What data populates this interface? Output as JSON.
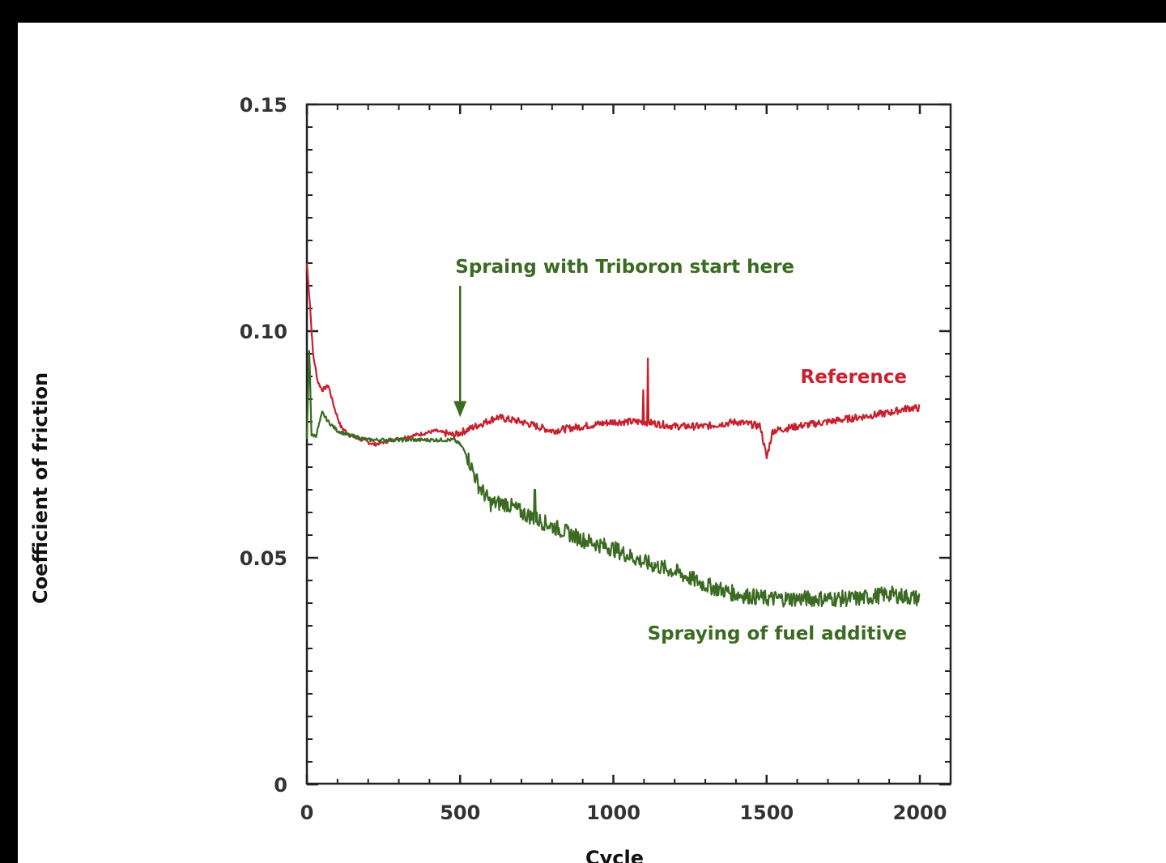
{
  "chart_data": {
    "type": "line",
    "title": "",
    "xlabel": "Cycle",
    "ylabel": "Coefficient of friction",
    "xlim": [
      0,
      2000
    ],
    "ylim": [
      0,
      0.15
    ],
    "x_ticks": [
      0,
      500,
      1000,
      1500,
      2000
    ],
    "y_ticks": [
      0,
      0.05,
      0.1,
      0.15
    ],
    "x_tick_labels": [
      "0",
      "500",
      "1000",
      "1500",
      "2000"
    ],
    "y_tick_labels": [
      "0",
      "0.05",
      "0.10",
      "0.15"
    ],
    "grid": false,
    "series": [
      {
        "name": "Reference",
        "color": "#c8202e",
        "x": [
          0,
          10,
          20,
          35,
          50,
          70,
          90,
          110,
          140,
          180,
          220,
          280,
          350,
          420,
          480,
          550,
          620,
          700,
          800,
          900,
          1000,
          1100,
          1200,
          1300,
          1400,
          1480,
          1500,
          1520,
          1600,
          1700,
          1800,
          1900,
          1960,
          2000
        ],
        "values": [
          0.115,
          0.106,
          0.095,
          0.089,
          0.087,
          0.088,
          0.083,
          0.079,
          0.077,
          0.076,
          0.075,
          0.076,
          0.077,
          0.078,
          0.077,
          0.079,
          0.081,
          0.08,
          0.078,
          0.079,
          0.08,
          0.08,
          0.079,
          0.079,
          0.08,
          0.079,
          0.072,
          0.078,
          0.079,
          0.08,
          0.081,
          0.082,
          0.083,
          0.083
        ]
      },
      {
        "name": "Spraying of fuel additive",
        "color": "#3b6b22",
        "x": [
          0,
          8,
          15,
          30,
          50,
          70,
          100,
          140,
          200,
          300,
          400,
          480,
          500,
          520,
          560,
          600,
          650,
          700,
          800,
          900,
          1000,
          1100,
          1200,
          1300,
          1400,
          1500,
          1600,
          1700,
          1800,
          1900,
          2000
        ],
        "values": [
          0.076,
          0.097,
          0.077,
          0.077,
          0.082,
          0.08,
          0.078,
          0.077,
          0.076,
          0.076,
          0.076,
          0.076,
          0.075,
          0.073,
          0.066,
          0.062,
          0.062,
          0.06,
          0.057,
          0.054,
          0.052,
          0.049,
          0.047,
          0.044,
          0.042,
          0.041,
          0.041,
          0.041,
          0.041,
          0.042,
          0.041
        ]
      }
    ],
    "annotations": [
      {
        "text": "Spraing with Triboron start here",
        "x": 500,
        "arrow_from_y": 0.11,
        "arrow_to_y": 0.081,
        "color": "#3b6b22"
      },
      {
        "text": "Reference",
        "x": 1800,
        "y": 0.09,
        "color": "#c8202e"
      },
      {
        "text": "Spraying of fuel additive",
        "x": 1550,
        "y": 0.033,
        "color": "#3b6b22"
      }
    ]
  }
}
